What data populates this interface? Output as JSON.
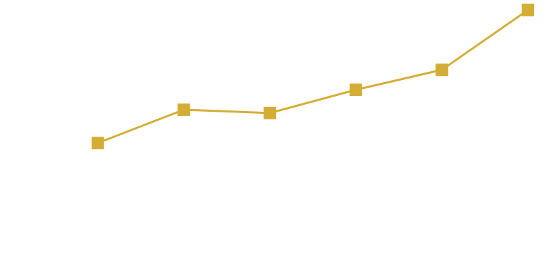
{
  "chart_data": {
    "type": "line",
    "title": "",
    "xlabel": "",
    "ylabel": "",
    "grid": false,
    "legend": "none",
    "x": [
      1,
      2,
      3,
      4,
      5,
      6
    ],
    "series": [
      {
        "color": "#d4ad34",
        "marker": "square",
        "values": [
          40,
          50,
          49,
          56,
          62,
          80
        ]
      }
    ],
    "xlim": [
      0.2,
      6.2
    ],
    "ylim": [
      0,
      83
    ]
  }
}
